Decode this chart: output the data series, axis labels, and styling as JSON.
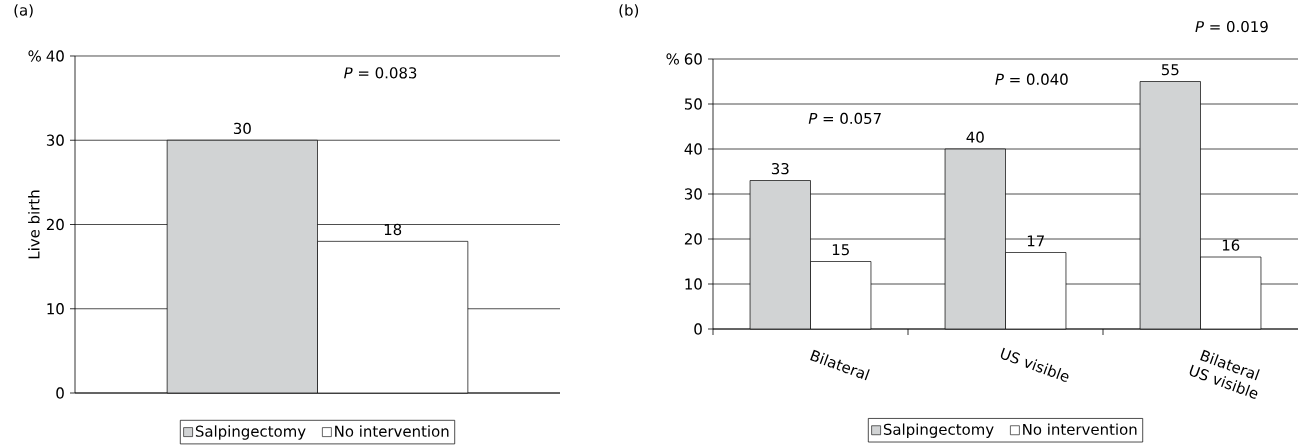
{
  "chart_data": [
    {
      "type": "bar",
      "title": "(a)",
      "ylabel": "Live birth",
      "categories": [
        null
      ],
      "series": [
        {
          "name": "Salpingectomy",
          "color": "#d1d3d4",
          "values": [
            30
          ]
        },
        {
          "name": "No intervention",
          "color": "#ffffff",
          "values": [
            18
          ]
        }
      ],
      "ylim": [
        0,
        40
      ],
      "yticks": [
        0,
        10,
        20,
        30,
        40
      ],
      "grid": "y",
      "legend": "bottom",
      "data_labels": true,
      "annotations": [
        "%",
        "*P* = 0.083"
      ]
    },
    {
      "type": "bar",
      "title": "(b)",
      "categories": [
        "Bilateral",
        "US visible",
        "Bilateral US visible"
      ],
      "series": [
        {
          "name": "Salpingectomy",
          "color": "#d1d3d4",
          "values": [
            33,
            40,
            55
          ]
        },
        {
          "name": "No intervention",
          "color": "#ffffff",
          "values": [
            15,
            17,
            16
          ]
        }
      ],
      "ylim": [
        0,
        60
      ],
      "yticks": [
        0,
        10,
        20,
        30,
        40,
        50,
        60
      ],
      "grid": "y",
      "legend": "bottom",
      "data_labels": true,
      "annotations": [
        "%",
        "*P* = 0.057",
        "*P* = 0.040",
        "*P* = 0.019"
      ]
    }
  ]
}
